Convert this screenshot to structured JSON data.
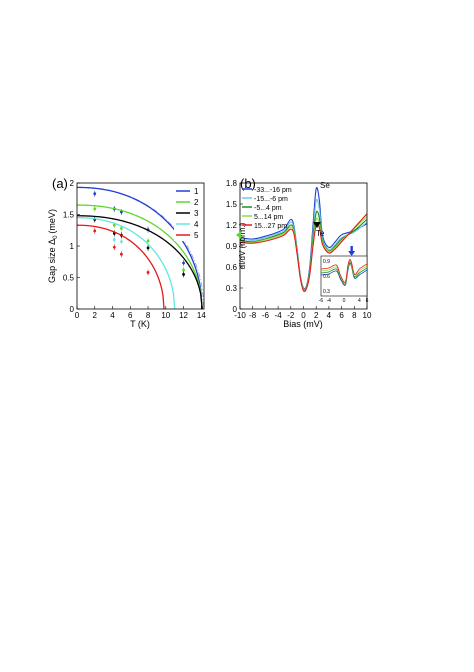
{
  "chart_data": [
    {
      "type": "line",
      "panel_label": "(a)",
      "xlabel": "T (K)",
      "ylabel": "Gap size Δ",
      "ylabel_sub": "0",
      "ylabel_unit": "(meV)",
      "xlim": [
        0,
        14.3
      ],
      "ylim": [
        0,
        2
      ],
      "xticks": [
        0,
        2,
        4,
        6,
        8,
        10,
        12,
        14
      ],
      "yticks": [
        0,
        0.5,
        1,
        1.5,
        2
      ],
      "ytick_labels": [
        "0",
        "0.5",
        "1",
        "1.5",
        "2"
      ],
      "legend_position": "top-right",
      "series": [
        {
          "name": "1",
          "color": "#1f3fd6",
          "delta0": 1.93,
          "tc": 14.1,
          "points": [
            [
              2,
              1.83
            ],
            [
              4.2,
              1.59
            ],
            [
              5,
              1.54
            ],
            [
              8,
              1.26
            ],
            [
              12,
              0.73
            ]
          ]
        },
        {
          "name": "2",
          "color": "#5ed82a",
          "delta0": 1.65,
          "tc": 14.1,
          "points": [
            [
              2,
              1.59
            ],
            [
              4.2,
              1.33
            ],
            [
              5,
              1.28
            ],
            [
              8,
              1.08
            ],
            [
              12,
              0.62
            ]
          ]
        },
        {
          "name": "3",
          "color": "#000000",
          "delta0": 1.48,
          "tc": 14.1,
          "points": [
            [
              2,
              1.42
            ],
            [
              4.2,
              1.2
            ],
            [
              5,
              1.17
            ],
            [
              8,
              0.97
            ],
            [
              12,
              0.55
            ]
          ]
        },
        {
          "name": "4",
          "color": "#63e7e0",
          "delta0": 1.45,
          "tc": 11,
          "points": [
            [
              4.2,
              1.1
            ],
            [
              5,
              1.07
            ]
          ]
        },
        {
          "name": "5",
          "color": "#e31a1a",
          "delta0": 1.33,
          "tc": 9.8,
          "points": [
            [
              2,
              1.24
            ],
            [
              4.2,
              0.98
            ],
            [
              5,
              0.87
            ],
            [
              8,
              0.58
            ]
          ]
        }
      ],
      "reference_curve": {
        "color": "#9a9ae8",
        "delta0": 1.93,
        "tc": 14.3
      }
    },
    {
      "type": "line",
      "panel_label": "(b)",
      "xlabel": "Bias (mV)",
      "ylabel": "dI/dV (norm.)",
      "xlim": [
        -10,
        10
      ],
      "ylim": [
        0,
        1.8
      ],
      "xticks": [
        -10,
        -8,
        -6,
        -4,
        -2,
        0,
        2,
        4,
        6,
        8,
        10
      ],
      "yticks": [
        0,
        0.3,
        0.6,
        0.9,
        1.2,
        1.5,
        1.8
      ],
      "ytick_labels": [
        "0",
        "0.3",
        "0.6",
        "0.9",
        "1.2",
        "1.5",
        "1.8"
      ],
      "legend_position": "top-left",
      "annotations": [
        "Se",
        "Te"
      ],
      "series": [
        {
          "name": "-33...-16 pm",
          "color": "#1f3fd6",
          "x": [
            -10,
            -8,
            -6,
            -4,
            -3,
            -2,
            -1.5,
            -1,
            -0.5,
            0,
            0.5,
            1,
            1.5,
            2,
            2.5,
            3,
            4,
            5,
            6,
            8,
            10
          ],
          "y": [
            1.02,
            1.0,
            1.04,
            1.1,
            1.15,
            1.28,
            1.18,
            0.85,
            0.48,
            0.3,
            0.34,
            0.62,
            1.2,
            1.72,
            1.55,
            1.05,
            0.88,
            0.96,
            1.06,
            1.12,
            1.22
          ]
        },
        {
          "name": "-15...-6 pm",
          "color": "#70c8e8",
          "x": [
            -10,
            -8,
            -6,
            -4,
            -3,
            -2,
            -1.5,
            -1,
            -0.5,
            0,
            0.5,
            1,
            1.5,
            2,
            2.5,
            3,
            4,
            5,
            6,
            8,
            10
          ],
          "y": [
            1.0,
            0.98,
            1.02,
            1.08,
            1.12,
            1.24,
            1.15,
            0.84,
            0.47,
            0.29,
            0.33,
            0.58,
            1.1,
            1.55,
            1.42,
            1.0,
            0.85,
            0.92,
            1.02,
            1.1,
            1.24
          ]
        },
        {
          "name": "-5...4 pm",
          "color": "#1f8a1f",
          "x": [
            -10,
            -8,
            -6,
            -4,
            -3,
            -2,
            -1.5,
            -1,
            -0.5,
            0,
            0.5,
            1,
            1.5,
            2,
            2.5,
            3,
            4,
            5,
            6,
            8,
            10
          ],
          "y": [
            0.98,
            0.96,
            1.0,
            1.06,
            1.1,
            1.2,
            1.12,
            0.82,
            0.46,
            0.28,
            0.32,
            0.55,
            1.02,
            1.38,
            1.3,
            0.97,
            0.83,
            0.9,
            1.0,
            1.12,
            1.28
          ]
        },
        {
          "name": "5...14 pm",
          "color": "#8ae040",
          "x": [
            -10,
            -8,
            -6,
            -4,
            -3,
            -2,
            -1.5,
            -1,
            -0.5,
            0,
            0.5,
            1,
            1.5,
            2,
            2.5,
            3,
            4,
            5,
            6,
            8,
            10
          ],
          "y": [
            0.96,
            0.95,
            0.99,
            1.04,
            1.08,
            1.17,
            1.1,
            0.8,
            0.45,
            0.27,
            0.31,
            0.52,
            0.95,
            1.28,
            1.22,
            0.95,
            0.82,
            0.88,
            0.98,
            1.15,
            1.32
          ]
        },
        {
          "name": "15...27 pm",
          "color": "#e31a1a",
          "x": [
            -10,
            -8,
            -6,
            -4,
            -3,
            -2,
            -1.5,
            -1,
            -0.5,
            0,
            0.5,
            1,
            1.5,
            2,
            2.5,
            3,
            4,
            5,
            6,
            8,
            10
          ],
          "y": [
            0.95,
            0.94,
            0.97,
            1.02,
            1.06,
            1.14,
            1.07,
            0.78,
            0.44,
            0.26,
            0.3,
            0.5,
            0.9,
            1.2,
            1.16,
            0.92,
            0.8,
            0.86,
            0.96,
            1.16,
            1.36
          ]
        }
      ],
      "inset": {
        "xlim": [
          -6,
          6
        ],
        "ylim": [
          0.2,
          1.0
        ],
        "xticks": [
          -6,
          -4,
          0,
          4,
          6
        ],
        "xtick_labels": [
          "-6",
          "-4",
          "0",
          "4",
          "6"
        ],
        "yticks": [
          0.3,
          0.6,
          0.9
        ],
        "ytick_labels": [
          "0.3",
          "0.6",
          "0.9"
        ],
        "marker_color": "#1f3fd6",
        "series": [
          {
            "color": "#1f3fd6",
            "x": [
              -6,
              -4,
              -2,
              -1,
              0,
              0.5,
              1,
              1.5,
              2,
              2.5,
              3,
              4,
              6
            ],
            "y": [
              0.62,
              0.64,
              0.7,
              0.55,
              0.42,
              0.45,
              0.7,
              0.85,
              0.78,
              0.6,
              0.55,
              0.62,
              0.72
            ]
          },
          {
            "color": "#1f8a1f",
            "x": [
              -6,
              -4,
              -2,
              -1,
              0,
              0.5,
              1,
              1.5,
              2,
              2.5,
              3,
              4,
              6
            ],
            "y": [
              0.66,
              0.68,
              0.74,
              0.58,
              0.44,
              0.47,
              0.72,
              0.88,
              0.8,
              0.62,
              0.58,
              0.66,
              0.76
            ]
          },
          {
            "color": "#8ae040",
            "x": [
              -6,
              -4,
              -2,
              -1,
              0,
              0.5,
              1,
              1.5,
              2,
              2.5,
              3,
              4,
              6
            ],
            "y": [
              0.7,
              0.72,
              0.78,
              0.6,
              0.46,
              0.5,
              0.76,
              0.9,
              0.83,
              0.65,
              0.6,
              0.7,
              0.8
            ]
          },
          {
            "color": "#e31a1a",
            "x": [
              -6,
              -4,
              -2,
              -1,
              0,
              0.5,
              1,
              1.5,
              2,
              2.5,
              3,
              4,
              6
            ],
            "y": [
              0.74,
              0.76,
              0.82,
              0.63,
              0.48,
              0.52,
              0.8,
              0.93,
              0.86,
              0.68,
              0.63,
              0.74,
              0.84
            ]
          }
        ]
      }
    }
  ]
}
